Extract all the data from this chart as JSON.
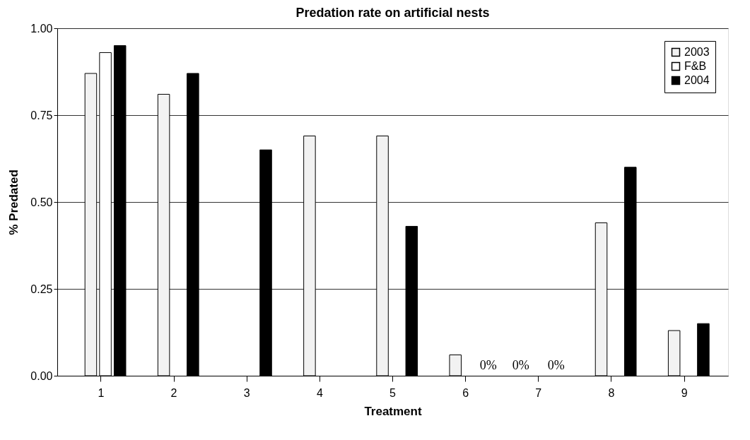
{
  "chart_data": {
    "type": "bar",
    "title": "Predation rate on artificial nests",
    "xlabel": "Treatment",
    "ylabel": "% Predated",
    "categories": [
      "1",
      "2",
      "3",
      "4",
      "5",
      "6",
      "7",
      "8",
      "9"
    ],
    "series": [
      {
        "name": "2003",
        "color": "#f2f2f2",
        "values": [
          0.87,
          0.81,
          null,
          0.69,
          0.69,
          0.06,
          0,
          0.44,
          0.13
        ]
      },
      {
        "name": "F&B",
        "color": "#ffffff",
        "values": [
          0.93,
          null,
          null,
          null,
          null,
          null,
          null,
          null,
          null
        ]
      },
      {
        "name": "2004",
        "color": "#000000",
        "values": [
          0.95,
          0.87,
          0.65,
          null,
          0.43,
          0,
          0,
          0.6,
          0.15
        ]
      }
    ],
    "annotations": [
      {
        "text": "0%",
        "x": "6",
        "y": 0
      },
      {
        "text": "0%",
        "x": "7",
        "y": 0
      },
      {
        "text": "0%",
        "x": "7",
        "y": 0
      }
    ],
    "ylim": [
      0,
      1
    ],
    "yticks": [
      {
        "value": 0,
        "label": "0.00"
      },
      0.25,
      {
        "value": 0.5,
        "label": "0.50"
      },
      0.75,
      {
        "value": 1,
        "label": "1.00"
      }
    ],
    "grid": "y",
    "legend": "top right"
  }
}
